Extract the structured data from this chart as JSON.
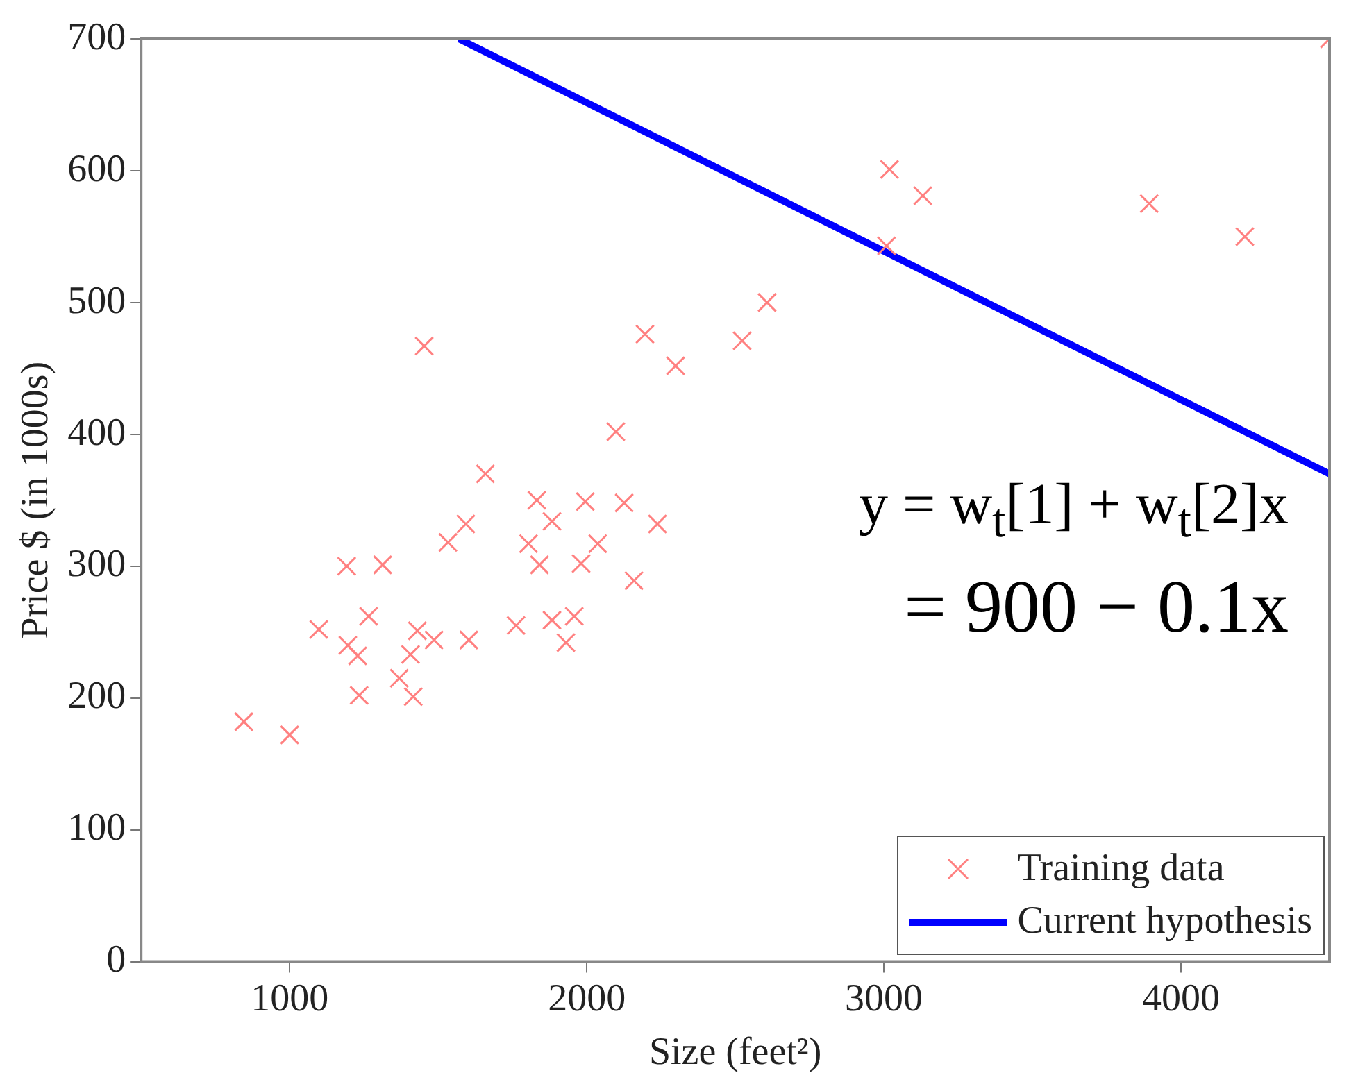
{
  "chart_data": {
    "type": "scatter",
    "xlabel": "Size (feet²)",
    "ylabel": "Price $ (in 1000s)",
    "annotations": [
      "y = w$_{t}$[1] + w$_{t}$[2]x",
      "= 900 − 0.1x"
    ],
    "xlim": [
      500,
      4500
    ],
    "xticks": [
      1000,
      2000,
      3000,
      4000
    ],
    "ylim": [
      0,
      700
    ],
    "yticks": [
      0,
      100,
      200,
      300,
      400,
      500,
      600,
      700
    ],
    "grid": false,
    "legend": "bottom right",
    "series": [
      {
        "name": "Training data",
        "color": "#ff8080",
        "marker": "cross",
        "x": [
          846,
          1000,
          1098,
          1192,
          1196,
          1229,
          1234,
          1266,
          1313,
          1369,
          1407,
          1416,
          1430,
          1453,
          1486,
          1533,
          1593,
          1603,
          1659,
          1762,
          1804,
          1832,
          1841,
          1883,
          1883,
          1930,
          1958,
          1981,
          1995,
          2037,
          2098,
          2126,
          2159,
          2196,
          2238,
          2299,
          2523,
          2607,
          3019,
          3131,
          3009,
          3893,
          4215,
          4500
        ],
        "values": [
          182,
          172,
          252,
          300,
          240,
          232,
          202,
          262,
          301,
          215,
          233,
          201,
          251,
          467,
          244,
          318,
          332,
          244,
          370,
          255,
          317,
          350,
          301,
          334,
          259,
          242,
          262,
          302,
          349,
          317,
          402,
          348,
          289,
          476,
          332,
          452,
          471,
          500,
          601,
          581,
          543,
          575,
          550,
          700
        ]
      },
      {
        "name": "Current hypothesis",
        "type": "line",
        "color": "#0000ff",
        "marker": "none",
        "line_style": "solid",
        "x": [
          1570,
          4500
        ],
        "values": [
          700,
          370
        ]
      }
    ]
  }
}
